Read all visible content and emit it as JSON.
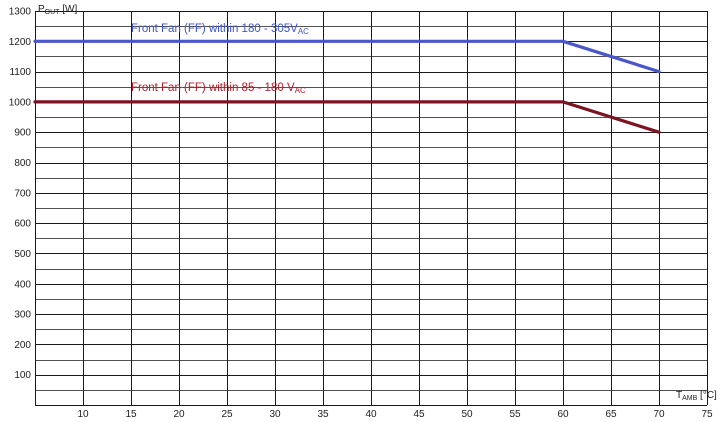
{
  "chart_data": {
    "type": "line",
    "xlabel": {
      "main": "T",
      "sub": "AMB",
      "unit": " [°C]"
    },
    "ylabel": {
      "main": "P",
      "sub": "OUT",
      "unit": " [W]"
    },
    "xlim": [
      5,
      75
    ],
    "ylim": [
      0,
      1300
    ],
    "x_ticks": [
      "10",
      "15",
      "20",
      "25",
      "30",
      "35",
      "40",
      "45",
      "50",
      "55",
      "60",
      "65",
      "70",
      "75"
    ],
    "y_ticks": [
      "100",
      "200",
      "300",
      "400",
      "500",
      "600",
      "700",
      "800",
      "900",
      "1000",
      "1100",
      "1200",
      "1300"
    ],
    "grid": true,
    "series": [
      {
        "name": "Front Fan (FF) within 180 - 305V",
        "name_sub": "AC",
        "color": "#4a57c9",
        "points": [
          [
            5,
            1200
          ],
          [
            60,
            1200
          ],
          [
            70,
            1100
          ]
        ]
      },
      {
        "name": "Front Fan (FF) within 85 - 180 V",
        "name_sub": "AC",
        "color": "#7a1420",
        "points": [
          [
            5,
            1000
          ],
          [
            60,
            1000
          ],
          [
            70,
            900
          ]
        ]
      }
    ],
    "colors": {
      "grid": "#1a1a1a",
      "series_label_blue": "#3f55c8",
      "series_label_red": "#b01e2a"
    }
  }
}
